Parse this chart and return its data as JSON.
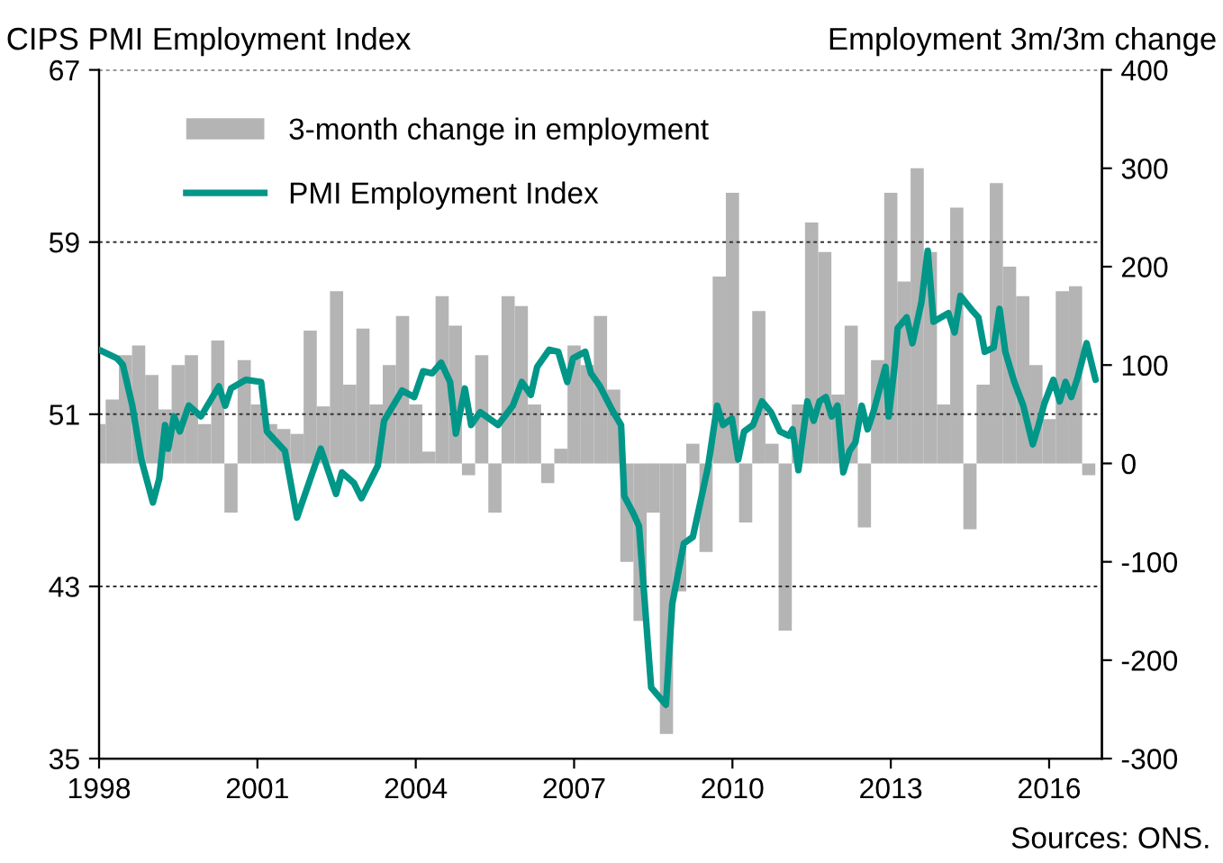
{
  "chart_data": {
    "type": "line",
    "ylabel": "CIPS PMI Employment Index",
    "y2label": "Employment 3m/3m change",
    "annotations": [
      "Sources: ONS."
    ],
    "xlim": [
      1998,
      2017.0
    ],
    "xticks": [
      1998,
      2001,
      2004,
      2007,
      2010,
      2013,
      2016
    ],
    "ylim": [
      35,
      67
    ],
    "yticks": [
      35,
      43,
      51,
      59,
      67
    ],
    "y2lim": [
      -300,
      400
    ],
    "y2ticks": [
      -300,
      -200,
      -100,
      0,
      100,
      200,
      300,
      400
    ],
    "grid": "y",
    "legend": "top left",
    "series": [
      {
        "type": "bar",
        "axis": "y2",
        "name": "3-month change in employment",
        "color": "#b4b4b4",
        "x": [
          1998.0,
          1998.25,
          1998.5,
          1998.75,
          1999.0,
          1999.25,
          1999.5,
          1999.75,
          2000.0,
          2000.25,
          2000.5,
          2000.75,
          2001.0,
          2001.25,
          2001.5,
          2001.75,
          2002.0,
          2002.25,
          2002.5,
          2002.75,
          2003.0,
          2003.25,
          2003.5,
          2003.75,
          2004.0,
          2004.25,
          2004.5,
          2004.75,
          2005.0,
          2005.25,
          2005.5,
          2005.75,
          2006.0,
          2006.25,
          2006.5,
          2006.75,
          2007.0,
          2007.25,
          2007.5,
          2007.75,
          2008.0,
          2008.25,
          2008.5,
          2008.75,
          2009.0,
          2009.25,
          2009.5,
          2009.75,
          2010.0,
          2010.25,
          2010.5,
          2010.75,
          2011.0,
          2011.25,
          2011.5,
          2011.75,
          2012.0,
          2012.25,
          2012.5,
          2012.75,
          2013.0,
          2013.25,
          2013.5,
          2013.75,
          2014.0,
          2014.25,
          2014.5,
          2014.75,
          2015.0,
          2015.25,
          2015.5,
          2015.75,
          2016.0,
          2016.25,
          2016.5,
          2016.75
        ],
        "values": [
          40,
          65,
          110,
          120,
          90,
          55,
          100,
          110,
          40,
          125,
          -50,
          105,
          60,
          40,
          35,
          30,
          135,
          58,
          175,
          80,
          137,
          60,
          100,
          150,
          60,
          12,
          170,
          140,
          -12,
          110,
          -50,
          170,
          160,
          60,
          -20,
          15,
          120,
          100,
          150,
          75,
          -100,
          -160,
          -50,
          -275,
          -130,
          20,
          -90,
          190,
          275,
          -60,
          155,
          20,
          -170,
          60,
          245,
          215,
          70,
          140,
          -65,
          105,
          275,
          185,
          300,
          215,
          60,
          260,
          -67,
          80,
          285,
          200,
          170,
          100,
          45,
          175,
          180,
          -12
        ]
      },
      {
        "name": "PMI Employment Index",
        "color": "#009688",
        "x": [
          1998.0,
          1998.34,
          1998.45,
          1998.63,
          1998.8,
          1999.02,
          1999.14,
          1999.25,
          1999.31,
          1999.42,
          1999.53,
          1999.7,
          1999.93,
          2000.1,
          2000.27,
          2000.39,
          2000.5,
          2000.78,
          2001.07,
          2001.18,
          2001.52,
          2001.75,
          2002.2,
          2002.49,
          2002.6,
          2002.83,
          2002.97,
          2003.28,
          2003.4,
          2003.57,
          2003.74,
          2003.97,
          2004.14,
          2004.31,
          2004.48,
          2004.65,
          2004.76,
          2004.93,
          2005.05,
          2005.22,
          2005.56,
          2005.84,
          2006.01,
          2006.18,
          2006.3,
          2006.53,
          2006.7,
          2006.87,
          2006.98,
          2007.21,
          2007.32,
          2007.49,
          2007.72,
          2007.89,
          2007.95,
          2008.12,
          2008.23,
          2008.46,
          2008.74,
          2008.86,
          2009.08,
          2009.25,
          2009.54,
          2009.71,
          2009.82,
          2009.99,
          2010.11,
          2010.22,
          2010.39,
          2010.56,
          2010.73,
          2010.9,
          2011.07,
          2011.14,
          2011.25,
          2011.42,
          2011.54,
          2011.65,
          2011.77,
          2011.88,
          2011.99,
          2012.1,
          2012.22,
          2012.33,
          2012.45,
          2012.56,
          2012.67,
          2012.9,
          2012.96,
          2013.07,
          2013.13,
          2013.3,
          2013.41,
          2013.58,
          2013.7,
          2013.81,
          2014.09,
          2014.21,
          2014.32,
          2014.55,
          2014.66,
          2014.78,
          2014.95,
          2015.06,
          2015.17,
          2015.34,
          2015.51,
          2015.69,
          2015.8,
          2015.91,
          2016.08,
          2016.2,
          2016.31,
          2016.42,
          2016.54,
          2016.71,
          2016.88
        ],
        "values": [
          54.0,
          53.6,
          53.3,
          51.4,
          48.9,
          46.9,
          48.0,
          50.5,
          49.4,
          50.9,
          50.2,
          51.4,
          50.9,
          51.6,
          52.3,
          51.4,
          52.2,
          52.6,
          52.5,
          50.2,
          49.3,
          46.2,
          49.4,
          47.3,
          48.3,
          47.8,
          47.1,
          48.6,
          50.7,
          51.4,
          52.1,
          51.8,
          53.0,
          52.9,
          53.4,
          52.5,
          50.1,
          52.2,
          50.5,
          51.1,
          50.5,
          51.4,
          52.5,
          51.9,
          53.2,
          54.0,
          53.9,
          52.5,
          53.6,
          53.9,
          52.9,
          52.3,
          51.2,
          50.5,
          47.2,
          46.4,
          45.8,
          38.3,
          37.5,
          42.2,
          45.0,
          45.3,
          48.6,
          51.4,
          50.5,
          50.8,
          48.9,
          50.2,
          50.5,
          51.6,
          51.1,
          50.2,
          50.0,
          50.3,
          48.4,
          51.6,
          50.7,
          51.6,
          51.8,
          50.9,
          51.4,
          48.3,
          49.3,
          49.7,
          51.4,
          50.3,
          51.1,
          53.2,
          50.9,
          53.2,
          55.0,
          55.5,
          54.3,
          56.2,
          58.6,
          55.3,
          55.7,
          54.8,
          56.5,
          55.8,
          55.5,
          53.9,
          54.1,
          55.9,
          53.9,
          52.5,
          51.4,
          49.6,
          50.5,
          51.5,
          52.6,
          51.6,
          52.5,
          51.8,
          52.7,
          54.3,
          52.6
        ]
      }
    ]
  }
}
